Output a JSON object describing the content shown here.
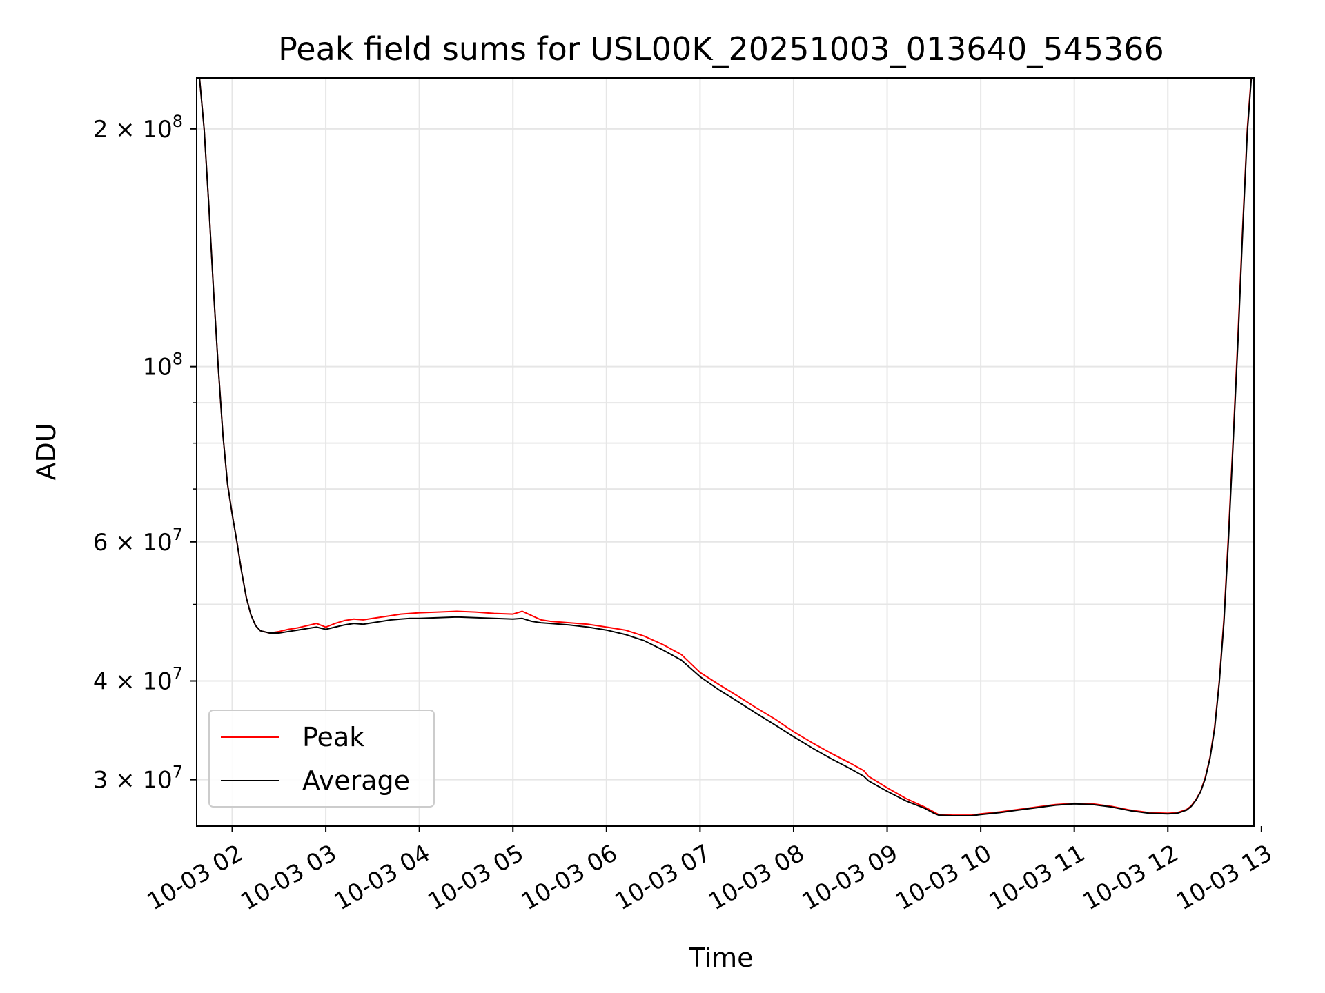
{
  "chart_data": {
    "type": "line",
    "title": "Peak field sums for USL00K_20251003_013640_545366",
    "xlabel": "Time",
    "ylabel": "ADU",
    "y_scale": "log",
    "ylim": [
      26200000,
      232000000
    ],
    "xlim": [
      1.62,
      12.92
    ],
    "grid": true,
    "legend_position": "lower-left",
    "x_ticks": [
      {
        "value": 2,
        "label": "10-03 02"
      },
      {
        "value": 3,
        "label": "10-03 03"
      },
      {
        "value": 4,
        "label": "10-03 04"
      },
      {
        "value": 5,
        "label": "10-03 05"
      },
      {
        "value": 6,
        "label": "10-03 06"
      },
      {
        "value": 7,
        "label": "10-03 07"
      },
      {
        "value": 8,
        "label": "10-03 08"
      },
      {
        "value": 9,
        "label": "10-03 09"
      },
      {
        "value": 10,
        "label": "10-03 10"
      },
      {
        "value": 11,
        "label": "10-03 11"
      },
      {
        "value": 12,
        "label": "10-03 12"
      },
      {
        "value": 13,
        "label": "10-03 13"
      }
    ],
    "y_major_ticks": [
      {
        "value": 30000000,
        "mantissa": "3",
        "base": "10",
        "exponent": "7"
      },
      {
        "value": 40000000,
        "mantissa": "4",
        "base": "10",
        "exponent": "7"
      },
      {
        "value": 60000000,
        "mantissa": "6",
        "base": "10",
        "exponent": "7"
      },
      {
        "value": 100000000,
        "mantissa": "",
        "base": "10",
        "exponent": "8"
      },
      {
        "value": 200000000,
        "mantissa": "2",
        "base": "10",
        "exponent": "8"
      }
    ],
    "y_minor_ticks": [
      50000000,
      70000000,
      80000000,
      90000000
    ],
    "times_sign": "×",
    "series": [
      {
        "name": "Peak",
        "color": "#ff0000",
        "x": [
          1.65,
          1.7,
          1.75,
          1.8,
          1.85,
          1.9,
          1.95,
          2.0,
          2.05,
          2.1,
          2.15,
          2.2,
          2.25,
          2.3,
          2.4,
          2.5,
          2.6,
          2.7,
          2.8,
          2.9,
          3.0,
          3.1,
          3.2,
          3.3,
          3.4,
          3.5,
          3.6,
          3.7,
          3.8,
          3.9,
          4.0,
          4.2,
          4.4,
          4.6,
          4.8,
          5.0,
          5.1,
          5.2,
          5.3,
          5.4,
          5.6,
          5.8,
          6.0,
          6.2,
          6.4,
          6.6,
          6.8,
          7.0,
          7.2,
          7.4,
          7.6,
          7.8,
          8.0,
          8.2,
          8.4,
          8.6,
          8.75,
          8.8,
          9.0,
          9.2,
          9.4,
          9.5,
          9.55,
          9.7,
          9.9,
          10.0,
          10.2,
          10.4,
          10.6,
          10.8,
          11.0,
          11.2,
          11.4,
          11.6,
          11.8,
          12.0,
          12.1,
          12.2,
          12.25,
          12.3,
          12.35,
          12.4,
          12.45,
          12.5,
          12.55,
          12.6,
          12.65,
          12.7,
          12.75,
          12.8,
          12.85,
          12.9
        ],
        "y": [
          232000000,
          200000000,
          160000000,
          125000000,
          100000000,
          82000000,
          71000000,
          65000000,
          60000000,
          55000000,
          51000000,
          48500000,
          47000000,
          46300000,
          46000000,
          46200000,
          46500000,
          46700000,
          47000000,
          47300000,
          46800000,
          47300000,
          47700000,
          47900000,
          47800000,
          48000000,
          48200000,
          48400000,
          48600000,
          48700000,
          48800000,
          48900000,
          49000000,
          48900000,
          48700000,
          48600000,
          49000000,
          48400000,
          47800000,
          47600000,
          47400000,
          47200000,
          46800000,
          46400000,
          45600000,
          44500000,
          43200000,
          41000000,
          39600000,
          38300000,
          37000000,
          35800000,
          34500000,
          33400000,
          32400000,
          31500000,
          30800000,
          30300000,
          29300000,
          28400000,
          27700000,
          27300000,
          27100000,
          27050000,
          27050000,
          27150000,
          27300000,
          27500000,
          27700000,
          27900000,
          28000000,
          27950000,
          27750000,
          27450000,
          27250000,
          27200000,
          27250000,
          27500000,
          27800000,
          28300000,
          29000000,
          30200000,
          32000000,
          35000000,
          40000000,
          48000000,
          62000000,
          82000000,
          110000000,
          150000000,
          200000000,
          240000000
        ]
      },
      {
        "name": "Average",
        "color": "#000000",
        "x": [
          1.65,
          1.7,
          1.75,
          1.8,
          1.85,
          1.9,
          1.95,
          2.0,
          2.05,
          2.1,
          2.15,
          2.2,
          2.25,
          2.3,
          2.4,
          2.5,
          2.6,
          2.7,
          2.8,
          2.9,
          3.0,
          3.1,
          3.2,
          3.3,
          3.4,
          3.5,
          3.6,
          3.7,
          3.8,
          3.9,
          4.0,
          4.2,
          4.4,
          4.6,
          4.8,
          5.0,
          5.1,
          5.2,
          5.3,
          5.4,
          5.6,
          5.8,
          6.0,
          6.2,
          6.4,
          6.6,
          6.8,
          7.0,
          7.2,
          7.4,
          7.6,
          7.8,
          8.0,
          8.2,
          8.4,
          8.6,
          8.75,
          8.8,
          9.0,
          9.2,
          9.4,
          9.5,
          9.55,
          9.7,
          9.9,
          10.0,
          10.2,
          10.4,
          10.6,
          10.8,
          11.0,
          11.2,
          11.4,
          11.6,
          11.8,
          12.0,
          12.1,
          12.2,
          12.25,
          12.3,
          12.35,
          12.4,
          12.45,
          12.5,
          12.55,
          12.6,
          12.65,
          12.7,
          12.75,
          12.8,
          12.85,
          12.9
        ],
        "y": [
          232000000,
          200000000,
          160000000,
          125000000,
          100000000,
          82000000,
          71000000,
          65000000,
          60000000,
          55000000,
          51000000,
          48500000,
          47000000,
          46300000,
          46000000,
          46000000,
          46200000,
          46400000,
          46600000,
          46800000,
          46500000,
          46800000,
          47100000,
          47300000,
          47200000,
          47400000,
          47600000,
          47800000,
          47900000,
          48000000,
          48000000,
          48100000,
          48200000,
          48100000,
          48000000,
          47900000,
          48000000,
          47600000,
          47400000,
          47300000,
          47100000,
          46800000,
          46400000,
          45800000,
          45000000,
          43800000,
          42500000,
          40500000,
          39000000,
          37700000,
          36400000,
          35200000,
          34000000,
          32900000,
          31900000,
          31000000,
          30300000,
          29900000,
          29000000,
          28200000,
          27600000,
          27200000,
          27050000,
          27000000,
          27000000,
          27100000,
          27250000,
          27450000,
          27650000,
          27850000,
          27950000,
          27900000,
          27700000,
          27400000,
          27200000,
          27150000,
          27200000,
          27450000,
          27750000,
          28250000,
          28950000,
          30100000,
          31900000,
          34800000,
          39800000,
          47500000,
          61000000,
          81000000,
          108000000,
          148000000,
          198000000,
          238000000
        ]
      }
    ]
  }
}
